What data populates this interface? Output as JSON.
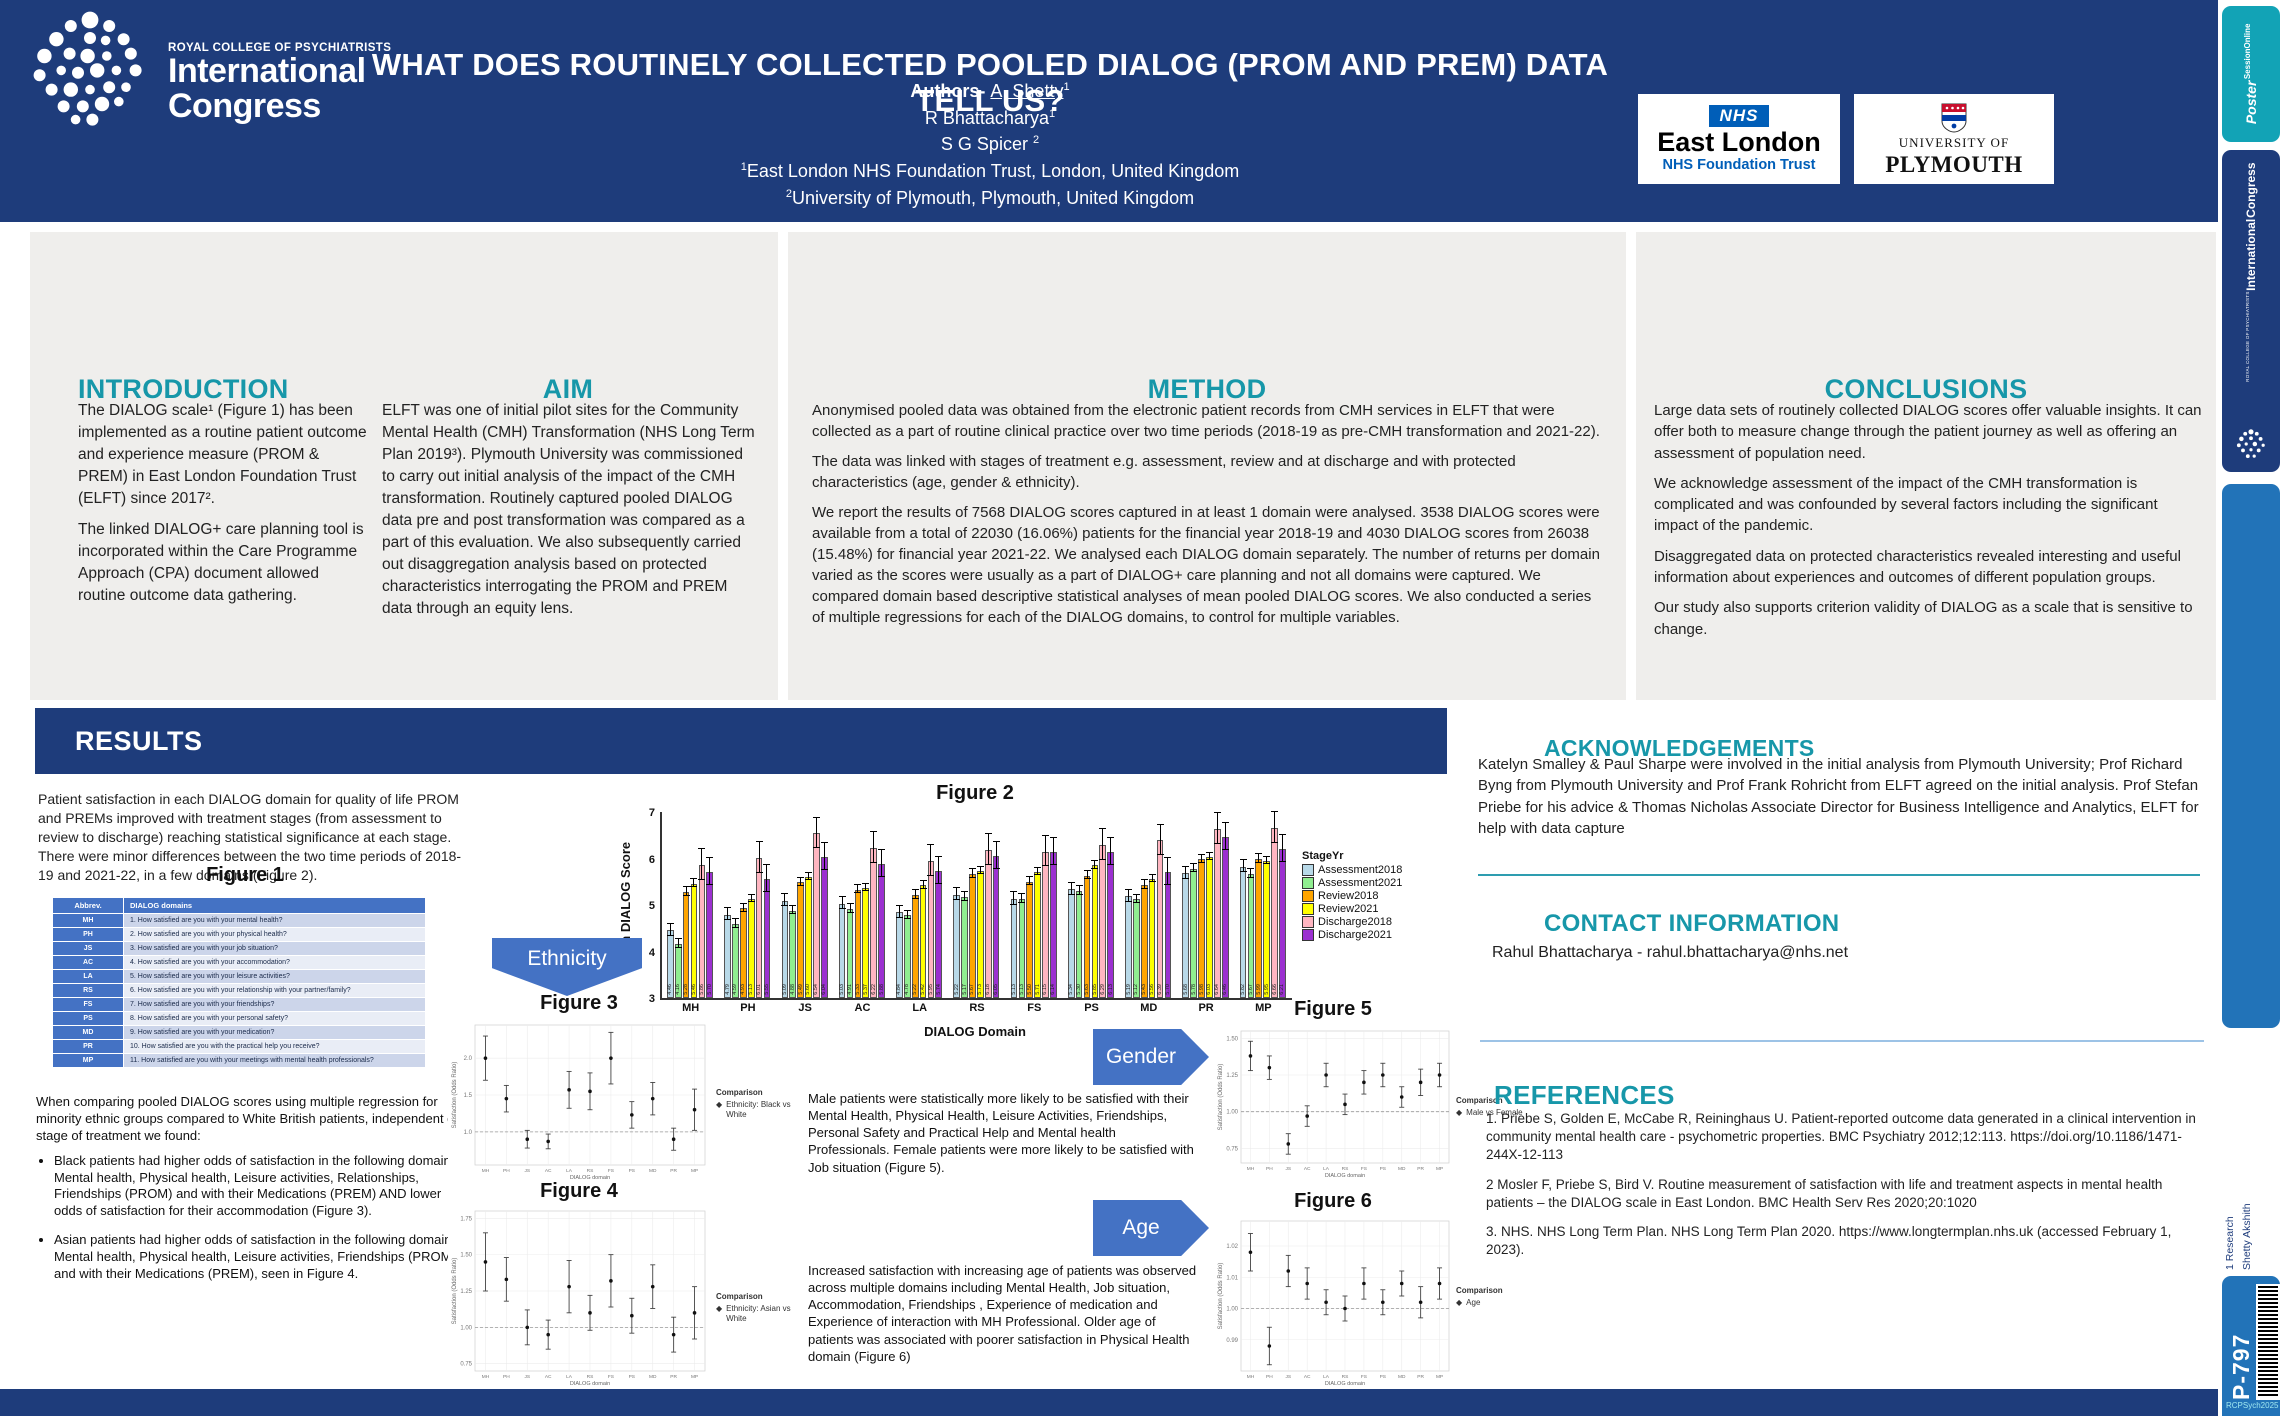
{
  "colors": {
    "accent_teal": "#1797a9",
    "navy": "#1e3c7b",
    "arrow_blue": "#4472c4",
    "nhs_blue": "#005eb8"
  },
  "header": {
    "title": "WHAT DOES ROUTINELY COLLECTED POOLED DIALOG (PROM AND PREM) DATA TELL US?",
    "authors_label": "Authors- ",
    "author1": "A, Shetty",
    "author1_sup": "1",
    "author2": "R Bhattacharya",
    "author2_sup": "1",
    "author3": "S G Spicer ",
    "author3_sup": "2",
    "affil1_sup": "1",
    "affil1": "East London NHS Foundation Trust, London, United Kingdom",
    "affil2_sup": "2",
    "affil2": "University of Plymouth, Plymouth, United Kingdom",
    "brand_college": "ROYAL COLLEGE OF PSYCHIATRISTS",
    "brand_line1": "International",
    "brand_line2": "Congress",
    "nhs_tag": "NHS",
    "nhs_name": "East London",
    "nhs_sub": "NHS Foundation Trust",
    "plym_line1": "UNIVERSITY OF",
    "plym_line2": "PLYMOUTH"
  },
  "introduction": {
    "heading": "INTRODUCTION",
    "p1": "The DIALOG scale¹ (Figure 1) has been implemented as a routine patient outcome and experience measure (PROM & PREM) in East London Foundation Trust (ELFT) since 2017².",
    "p2": "The linked DIALOG+ care planning tool is incorporated within the Care Programme Approach (CPA) document allowed routine outcome data gathering."
  },
  "aim": {
    "heading": "AIM",
    "body": "ELFT was one of initial pilot sites for the Community Mental Health (CMH) Transformation (NHS Long Term Plan 2019³). Plymouth University was commissioned to carry out initial analysis of the impact of the CMH transformation.  Routinely captured pooled DIALOG data pre and post transformation was compared as a part of this evaluation. We also subsequently carried out disaggregation analysis based on protected characteristics interrogating the PROM and PREM data through an equity lens."
  },
  "method": {
    "heading": "METHOD",
    "p1": "Anonymised pooled data was obtained from the electronic patient records from CMH services in ELFT that were collected as a part of routine clinical practice over two time periods (2018-19 as pre-CMH transformation and 2021-22).",
    "p2": "The data was linked with stages of treatment e.g. assessment, review and at discharge and with protected characteristics (age, gender & ethnicity).",
    "p3": "We report the results of 7568 DIALOG scores captured in at least 1 domain were analysed. 3538 DIALOG scores were available from a total of 22030 (16.06%) patients for the financial year 2018-19 and 4030 DIALOG scores from 26038 (15.48%) for financial year 2021-22. We analysed each DIALOG domain separately. The number of returns per domain varied as the scores were usually as a part of DIALOG+ care planning and not all domains were captured. We compared domain based descriptive statistical analyses of mean pooled DIALOG scores. We also conducted a series of multiple regressions for each of the DIALOG domains, to control for multiple variables."
  },
  "conclusions": {
    "heading": "CONCLUSIONS",
    "p1": "Large data sets of routinely collected DIALOG scores offer valuable insights. It can offer both to measure change through the patient journey as well as offering an assessment of population need.",
    "p2": "We acknowledge assessment of the impact of the CMH transformation is complicated and was confounded by several factors including the significant impact of the pandemic.",
    "p3": "Disaggregated data on protected characteristics revealed interesting and useful information about experiences and outcomes of different population groups.",
    "p4": "Our study also supports criterion validity of DIALOG as a scale that is sensitive to change."
  },
  "results": {
    "heading": "RESULTS",
    "intro": "Patient satisfaction in each DIALOG domain for quality of life PROM and PREMs improved with treatment stages (from assessment to review to discharge) reaching statistical significance at each stage. There were minor differences between the two time periods of 2018-19 and 2021-22, in a few domains (Figure 2).",
    "bullets_intro": "When comparing pooled DIALOG scores using multiple regression for minority ethnic groups compared to White British patients, independent of stage of treatment we found:",
    "bullet1": "Black patients had higher odds of satisfaction in the following domains: Mental health, Physical health, Leisure activities, Relationships, Friendships (PROM) and with their Medications (PREM) AND lower odds of satisfaction for their accommodation (Figure 3).",
    "bullet2": "Asian patients had higher odds of satisfaction in the following domains: Mental health, Physical health, Leisure activities, Friendships (PROM) and with their Medications (PREM), seen in Figure 4.",
    "male_text": "Male patients were statistically more likely to be satisfied with their Mental Health, Physical Health, Leisure Activities, Friendships, Personal Safety and Practical Help and Mental health Professionals. Female patients were more likely to be satisfied with Job situation (Figure 5).",
    "age_text": "Increased satisfaction with increasing age of patients was observed across multiple domains including Mental Health, Job situation, Accommodation, Friendships , Experience of medication and Experience of interaction with MH Professional. Older age of patients was associated with poorer satisfaction in Physical Health domain (Figure 6)"
  },
  "arrows": {
    "ethnicity": "Ethnicity",
    "gender": "Gender",
    "age": "Age"
  },
  "figure1": {
    "title": "Figure 1",
    "col1_header": "Abbrev.",
    "col2_header": "DIALOG domains",
    "rows": [
      {
        "abbrev": "MH",
        "text": "1. How satisfied are you with your mental health?"
      },
      {
        "abbrev": "PH",
        "text": "2. How satisfied are you with your physical health?"
      },
      {
        "abbrev": "JS",
        "text": "3. How satisfied are you with your job situation?"
      },
      {
        "abbrev": "AC",
        "text": "4. How satisfied are you with your accommodation?"
      },
      {
        "abbrev": "LA",
        "text": "5. How satisfied are you with your leisure activities?"
      },
      {
        "abbrev": "RS",
        "text": "6. How satisfied are you with your relationship with your partner/family?"
      },
      {
        "abbrev": "FS",
        "text": "7. How satisfied are you with your friendships?"
      },
      {
        "abbrev": "PS",
        "text": "8. How satisfied are you with your personal safety?"
      },
      {
        "abbrev": "MD",
        "text": "9. How satisfied are you with your medication?"
      },
      {
        "abbrev": "PR",
        "text": "10. How satisfied are you with the practical help you receive?"
      },
      {
        "abbrev": "MP",
        "text": "11. How satisfied are you with your meetings with mental health professionals?"
      }
    ]
  },
  "acknowledgements": {
    "heading": "ACKNOWLEDGEMENTS",
    "body": "Katelyn Smalley & Paul Sharpe were involved in the initial analysis from Plymouth University; Prof Richard Byng from Plymouth University and Prof Frank Rohricht from ELFT agreed on the initial analysis. Prof Stefan Priebe for his advice & Thomas Nicholas Associate Director for Business Intelligence and Analytics, ELFT for help with data capture"
  },
  "contact": {
    "heading": "CONTACT INFORMATION",
    "body": "Rahul Bhattacharya - rahul.bhattacharya@nhs.net"
  },
  "references": {
    "heading": "REFERENCES",
    "items": [
      "1. Priebe S, Golden E, McCabe R, Reininghaus U. Patient-reported outcome data generated in a clinical intervention in community mental health care - psychometric properties. BMC Psychiatry 2012;12:113. https://doi.org/10.1186/1471-244X-12-113",
      "2  Mosler F, Priebe S, Bird V. Routine measurement of satisfaction with life and treatment aspects in mental health patients – the DIALOG scale in East London. BMC Health Serv Res 2020;20:1020",
      "3. NHS. NHS Long Term Plan. NHS Long Term Plan 2020. https://www.longtermplan.nhs.uk (accessed February 1, 2023)."
    ]
  },
  "sidebar": {
    "poster_line1": "Poster",
    "poster_line2": "SessionOnline",
    "congress_college": "ROYAL COLLEGE OF PSYCHIATRISTS",
    "congress_line1": "International",
    "congress_line2": "Congress",
    "research": "1 Research",
    "author": "Shetty Akshith",
    "code": "P-797",
    "footer": "RCPSych2025"
  },
  "chart_data": [
    {
      "type": "bar",
      "title": "Figure 2",
      "ylabel": "Mean DIALOG Score",
      "xlabel": "DIALOG Domain",
      "ylim": [
        3,
        7
      ],
      "yticks": [
        3,
        4,
        5,
        6,
        7
      ],
      "legend_title": "StageYr",
      "categories": [
        "MH",
        "PH",
        "JS",
        "AC",
        "LA",
        "RS",
        "FS",
        "PS",
        "MD",
        "PR",
        "MP"
      ],
      "series": [
        {
          "name": "Assessment2018",
          "color": "#b8d9e8",
          "err": 0.12,
          "values": [
            4.46,
            4.79,
            5.09,
            5.03,
            4.84,
            5.22,
            5.13,
            5.34,
            5.19,
            5.68,
            5.82
          ]
        },
        {
          "name": "Assessment2021",
          "color": "#90ee90",
          "err": 0.08,
          "values": [
            4.16,
            4.59,
            4.88,
            4.91,
            4.78,
            5.17,
            5.13,
            5.3,
            5.12,
            5.78,
            5.67
          ]
        },
        {
          "name": "Review2018",
          "color": "#ffa500",
          "err": 0.08,
          "values": [
            5.28,
            4.93,
            5.49,
            5.33,
            5.22,
            5.67,
            5.5,
            5.63,
            5.43,
            5.98,
            5.99
          ]
        },
        {
          "name": "Review2021",
          "color": "#ffff00",
          "err": 0.07,
          "values": [
            5.46,
            5.13,
            5.6,
            5.37,
            5.42,
            5.73,
            5.71,
            5.85,
            5.56,
            6.03,
            5.95
          ]
        },
        {
          "name": "Discharge2018",
          "color": "#ffb6c1",
          "err": 0.32,
          "values": [
            5.86,
            6.01,
            6.54,
            6.22,
            5.95,
            6.18,
            6.15,
            6.29,
            6.39,
            6.64,
            6.66
          ]
        },
        {
          "name": "Discharge2021",
          "color": "#9b30d0",
          "err": 0.28,
          "values": [
            5.7,
            5.55,
            6.04,
            5.88,
            5.74,
            6.05,
            6.14,
            6.13,
            5.7,
            6.46,
            6.21
          ]
        }
      ]
    },
    {
      "type": "scatter",
      "title": "Figure 3",
      "ylabel": "Satisfaction (Odds Ratio)",
      "xlabel": "DIALOG domain",
      "legend_title": "Comparison",
      "legend_label": "Ethnicity: Black vs White",
      "categories": [
        "MH",
        "PH",
        "JS",
        "AC",
        "LA",
        "RS",
        "FS",
        "PS",
        "MD",
        "PR",
        "MP"
      ],
      "values": [
        2.0,
        1.45,
        0.9,
        0.87,
        1.57,
        1.55,
        2.0,
        1.23,
        1.45,
        0.9,
        1.3
      ],
      "err": [
        0.3,
        0.18,
        0.12,
        0.1,
        0.25,
        0.25,
        0.35,
        0.18,
        0.22,
        0.15,
        0.28
      ],
      "refline": 1.0,
      "ylim": [
        0.55,
        2.45
      ],
      "yticks": [
        1.0,
        1.5,
        2.0
      ],
      "tick_decimals": 1
    },
    {
      "type": "scatter",
      "title": "Figure 4",
      "ylabel": "Satisfaction (Odds Ratio)",
      "xlabel": "DIALOG domain",
      "legend_title": "Comparison",
      "legend_label": "Ethnicity: Asian vs White",
      "categories": [
        "MH",
        "PH",
        "JS",
        "AC",
        "LA",
        "RS",
        "FS",
        "PS",
        "MD",
        "PR",
        "MP"
      ],
      "values": [
        1.45,
        1.33,
        1.0,
        0.95,
        1.28,
        1.1,
        1.32,
        1.08,
        1.28,
        0.95,
        1.1
      ],
      "err": [
        0.2,
        0.15,
        0.12,
        0.1,
        0.18,
        0.12,
        0.18,
        0.12,
        0.15,
        0.12,
        0.18
      ],
      "refline": 1.0,
      "ylim": [
        0.7,
        1.8
      ],
      "yticks": [
        0.75,
        1.0,
        1.25,
        1.5,
        1.75
      ],
      "tick_decimals": 2
    },
    {
      "type": "scatter",
      "title": "Figure 5",
      "ylabel": "Satisfaction (Odds Ratio)",
      "xlabel": "DIALOG domain",
      "legend_title": "Comparison",
      "legend_label": "Male vs Female",
      "categories": [
        "MH",
        "PH",
        "JS",
        "AC",
        "LA",
        "RS",
        "FS",
        "PS",
        "MD",
        "PR",
        "MP"
      ],
      "values": [
        1.38,
        1.3,
        0.78,
        0.97,
        1.25,
        1.05,
        1.2,
        1.25,
        1.1,
        1.2,
        1.25
      ],
      "err": [
        0.1,
        0.08,
        0.07,
        0.07,
        0.08,
        0.07,
        0.08,
        0.08,
        0.07,
        0.09,
        0.08
      ],
      "refline": 1.0,
      "ylim": [
        0.65,
        1.55
      ],
      "yticks": [
        0.75,
        1.0,
        1.25,
        1.5
      ],
      "tick_decimals": 2
    },
    {
      "type": "scatter",
      "title": "Figure 6",
      "ylabel": "Satisfaction (Odds Ratio)",
      "xlabel": "DIALOG domain",
      "legend_title": "Comparison",
      "legend_label": "Age",
      "categories": [
        "MH",
        "PH",
        "JS",
        "AC",
        "LA",
        "RS",
        "FS",
        "PS",
        "MD",
        "PR",
        "MP"
      ],
      "values": [
        1.018,
        0.988,
        1.012,
        1.008,
        1.002,
        1.0,
        1.008,
        1.002,
        1.008,
        1.002,
        1.008
      ],
      "err": [
        0.006,
        0.006,
        0.005,
        0.005,
        0.004,
        0.004,
        0.005,
        0.004,
        0.004,
        0.005,
        0.005
      ],
      "refline": 1.0,
      "ylim": [
        0.98,
        1.028
      ],
      "yticks": [
        0.99,
        1.0,
        1.01,
        1.02
      ],
      "tick_decimals": 2
    }
  ]
}
